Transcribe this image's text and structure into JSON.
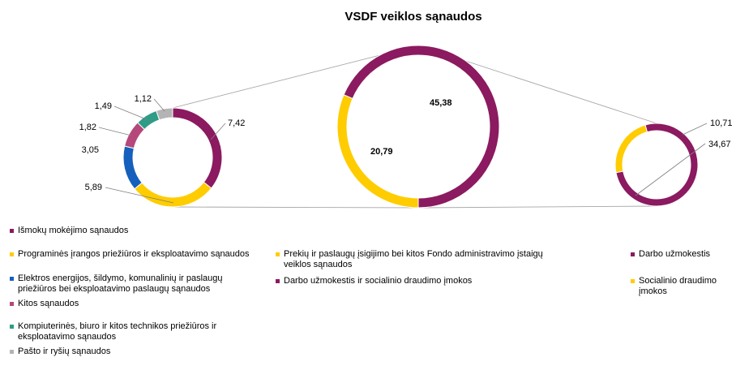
{
  "chart_data": [
    {
      "type": "pie",
      "title": "VSDF veiklos sąnaudos",
      "variant": "doughnut",
      "series": [
        {
          "label": "Išmokų mokėjimo sąnaudos",
          "value": 7.42,
          "display": "7,42",
          "color": "#8b1a60"
        },
        {
          "label": "Programinės įrangos priežiūros ir eksploatavimo sąnaudos",
          "value": 5.89,
          "display": "5,89",
          "color": "#ffcc00"
        },
        {
          "label": "Elektros energijos, šildymo, komunalinių ir paslaugų priežiūros bei eksploatavimo paslaugų sąnaudos",
          "value": 3.05,
          "display": "3,05",
          "color": "#1560bd"
        },
        {
          "label": "Kitos sąnaudos",
          "value": 1.82,
          "display": "1,82",
          "color": "#b5477a"
        },
        {
          "label": "Kompiuterinės, biuro ir kitos technikos priežiūros ir eksploatavimo sąnaudos",
          "value": 1.49,
          "display": "1,49",
          "color": "#2e9c86"
        },
        {
          "label": "Pašto ir ryšių sąnaudos",
          "value": 1.12,
          "display": "1,12",
          "color": "#b4b4b4"
        }
      ]
    },
    {
      "type": "pie",
      "variant": "doughnut",
      "series": [
        {
          "label": "Prekių ir paslaugų įsigijimo bei kitos Fondo administravimo įstaigų veiklos sąnaudos",
          "value": 20.79,
          "display": "20,79",
          "color": "#ffcc00"
        },
        {
          "label": "Darbo užmokestis ir socialinio draudimo įmokos",
          "value": 45.38,
          "display": "45,38",
          "color": "#8b1a60"
        }
      ]
    },
    {
      "type": "pie",
      "variant": "doughnut",
      "series": [
        {
          "label": "Darbo užmokestis",
          "value": 34.67,
          "display": "34,67",
          "color": "#8b1a60"
        },
        {
          "label": "Socialinio draudimo įmokos",
          "value": 10.71,
          "display": "10,71",
          "color": "#ffcc00"
        }
      ]
    }
  ]
}
